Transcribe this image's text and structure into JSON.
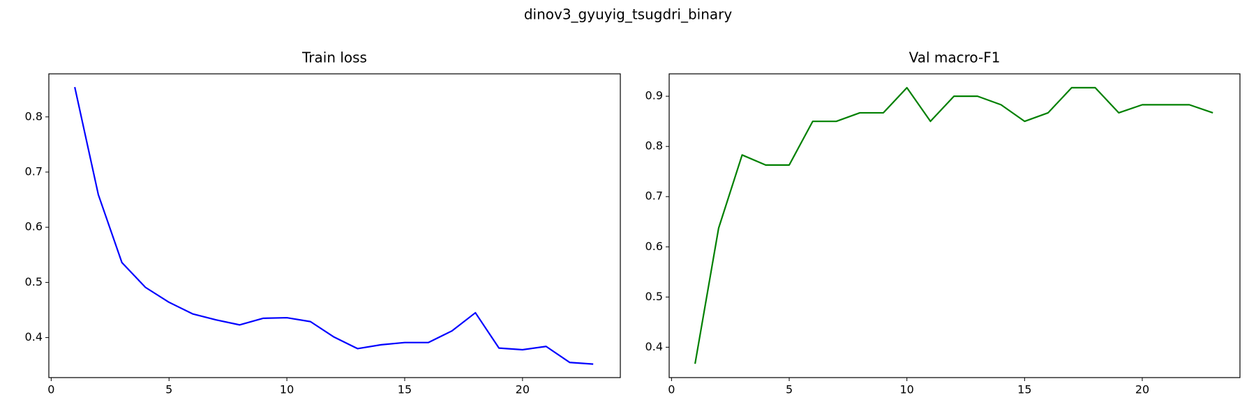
{
  "title": "dinov3_gyuyig_tsugdri_binary",
  "chart_data": [
    {
      "type": "line",
      "title": "Train loss",
      "x": [
        1,
        2,
        3,
        4,
        5,
        6,
        7,
        8,
        9,
        10,
        11,
        12,
        13,
        14,
        15,
        16,
        17,
        18,
        19,
        20,
        21,
        22,
        23
      ],
      "series": [
        {
          "color": "#0000ff",
          "values": [
            0.854,
            0.659,
            0.536,
            0.491,
            0.464,
            0.443,
            0.432,
            0.423,
            0.435,
            0.436,
            0.429,
            0.401,
            0.38,
            0.387,
            0.391,
            0.391,
            0.412,
            0.445,
            0.381,
            0.378,
            0.384,
            0.355,
            0.352
          ]
        }
      ],
      "xlim": [
        -0.1,
        24.15
      ],
      "ylim": [
        0.3275,
        0.878
      ],
      "xticks": [
        0,
        5,
        10,
        15,
        20
      ],
      "yticks": [
        0.4,
        0.5,
        0.6,
        0.7,
        0.8
      ],
      "grid": false
    },
    {
      "type": "line",
      "title": "Val macro-F1",
      "x": [
        1,
        2,
        3,
        4,
        5,
        6,
        7,
        8,
        9,
        10,
        11,
        12,
        13,
        14,
        15,
        16,
        17,
        18,
        19,
        20,
        21,
        22,
        23
      ],
      "series": [
        {
          "color": "#008000",
          "values": [
            0.367,
            0.637,
            0.783,
            0.763,
            0.763,
            0.85,
            0.85,
            0.867,
            0.867,
            0.917,
            0.85,
            0.9,
            0.9,
            0.883,
            0.85,
            0.867,
            0.917,
            0.917,
            0.867,
            0.883,
            0.883,
            0.883,
            0.867
          ]
        }
      ],
      "xlim": [
        -0.1,
        24.15
      ],
      "ylim": [
        0.3395,
        0.9446
      ],
      "xticks": [
        0,
        5,
        10,
        15,
        20
      ],
      "yticks": [
        0.4,
        0.5,
        0.6,
        0.7,
        0.8,
        0.9
      ],
      "grid": false
    }
  ]
}
